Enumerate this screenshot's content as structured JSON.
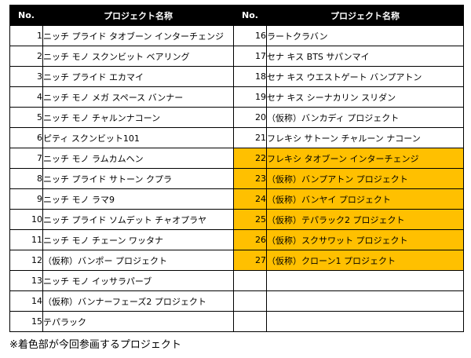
{
  "header": {
    "no_label_left": "No.",
    "name_label_left": "プロジェクト名称",
    "no_label_right": "No.",
    "name_label_right": "プロジェクト名称"
  },
  "highlight_color": "#ffc000",
  "left_projects": [
    {
      "no": "1",
      "name": "ニッチ プライド タオブーン インターチェンジ"
    },
    {
      "no": "2",
      "name": "ニッチ モノ スクンビット ベアリング"
    },
    {
      "no": "3",
      "name": "ニッチ プライド エカマイ"
    },
    {
      "no": "4",
      "name": "ニッチ モノ メガ スペース バンナー"
    },
    {
      "no": "5",
      "name": "ニッチ モノ チャルンナコーン"
    },
    {
      "no": "6",
      "name": "ピティ スクンビット101"
    },
    {
      "no": "7",
      "name": "ニッチ モノ ラムカムヘン"
    },
    {
      "no": "8",
      "name": "ニッチ プライド サトーン クプラ"
    },
    {
      "no": "9",
      "name": "ニッチ モノ ラマ9"
    },
    {
      "no": "10",
      "name": "ニッチ プライド ソムデット チャオプラヤ"
    },
    {
      "no": "11",
      "name": "ニッチ モノ チェーン ワッタナ"
    },
    {
      "no": "12",
      "name": "（仮称）バンポー プロジェクト"
    },
    {
      "no": "13",
      "name": "ニッチ モノ イッサラパーブ"
    },
    {
      "no": "14",
      "name": "（仮称）バンナーフェーズ2 プロジェクト"
    },
    {
      "no": "15",
      "name": "テパラック"
    }
  ],
  "right_projects": [
    {
      "no": "16",
      "name": "ラートクラバン",
      "highlighted": false
    },
    {
      "no": "17",
      "name": "セナ キス BTS サパンマイ",
      "highlighted": false
    },
    {
      "no": "18",
      "name": "セナ キス ウエストゲート バンプアトン",
      "highlighted": false
    },
    {
      "no": "19",
      "name": "セナ キス シーナカリン スリダン",
      "highlighted": false
    },
    {
      "no": "20",
      "name": "（仮称）バンカディ プロジェクト",
      "highlighted": false
    },
    {
      "no": "21",
      "name": "フレキシ サトーン チャルーン ナコーン",
      "highlighted": false
    },
    {
      "no": "22",
      "name": "フレキシ タオブーン インターチェンジ",
      "highlighted": true
    },
    {
      "no": "23",
      "name": "（仮称）バンプアトン プロジェクト",
      "highlighted": true
    },
    {
      "no": "24",
      "name": "（仮称）バンヤイ プロジェクト",
      "highlighted": true
    },
    {
      "no": "25",
      "name": "（仮称）テパラック2 プロジェクト",
      "highlighted": true
    },
    {
      "no": "26",
      "name": "（仮称）スクサワット プロジェクト",
      "highlighted": true
    },
    {
      "no": "27",
      "name": "（仮称）クローン1 プロジェクト",
      "highlighted": true
    }
  ],
  "footnote": "※着色部が今回参画するプロジェクト"
}
